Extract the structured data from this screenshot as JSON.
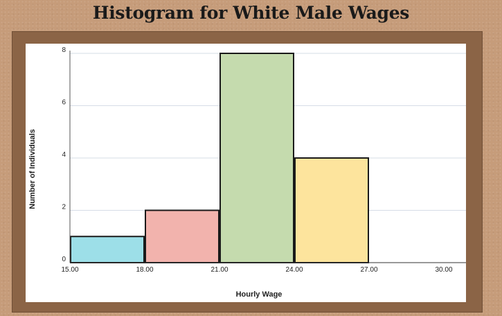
{
  "title": "Histogram for White Male Wages",
  "chart_data": {
    "type": "bar",
    "title": "Histogram for White Male Wages",
    "xlabel": "Hourly Wage",
    "ylabel": "Number of Individuals",
    "bins": [
      {
        "start": 15,
        "end": 18,
        "count": 1,
        "color": "#9ddfe8"
      },
      {
        "start": 18,
        "end": 21,
        "count": 2,
        "color": "#f2b3ad"
      },
      {
        "start": 21,
        "end": 24,
        "count": 8,
        "color": "#c5dbae"
      },
      {
        "start": 24,
        "end": 27,
        "count": 4,
        "color": "#fde49d"
      }
    ],
    "xticks": [
      "15.00",
      "18.00",
      "21.00",
      "24.00",
      "27.00",
      "30.00"
    ],
    "yticks": [
      "0",
      "2",
      "4",
      "6",
      "8"
    ],
    "xlim": [
      15,
      30
    ],
    "ylim": [
      0,
      8
    ],
    "grid": true,
    "legend": "none"
  }
}
